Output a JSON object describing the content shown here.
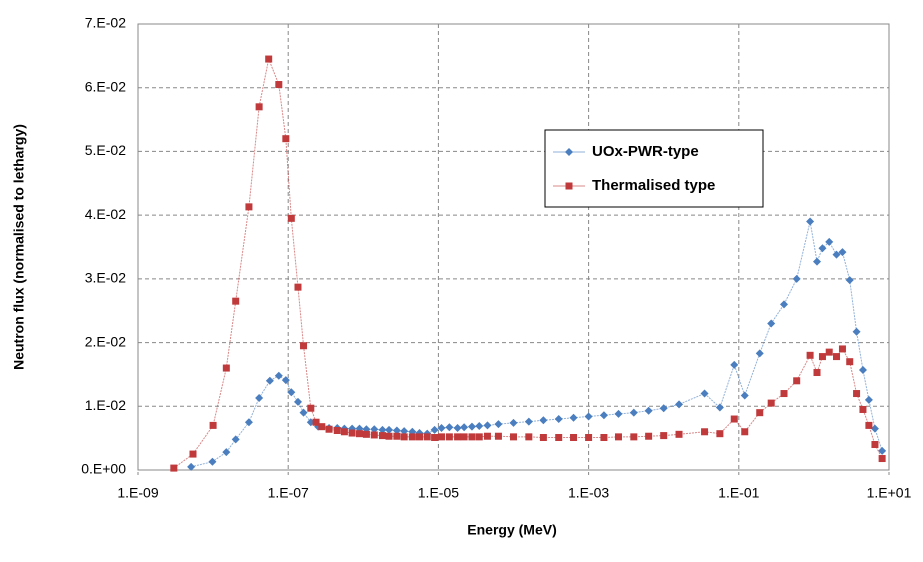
{
  "chart_data": {
    "type": "scatter-line",
    "x_label": "Energy (MeV)",
    "y_label": "Neutron flux (normalised to lethargy)",
    "xscale": "log",
    "xlim": [
      1e-09,
      10
    ],
    "xticks": [
      {
        "value": 1e-09,
        "label": "1.E-09"
      },
      {
        "value": 1e-07,
        "label": "1.E-07"
      },
      {
        "value": 1e-05,
        "label": "1.E-05"
      },
      {
        "value": 0.001,
        "label": "1.E-03"
      },
      {
        "value": 0.1,
        "label": "1.E-01"
      },
      {
        "value": 10,
        "label": "1.E+01"
      }
    ],
    "ylim": [
      0,
      0.07
    ],
    "yticks": [
      {
        "value": 0,
        "label": "0.E+00"
      },
      {
        "value": 0.01,
        "label": "1.E-02"
      },
      {
        "value": 0.02,
        "label": "2.E-02"
      },
      {
        "value": 0.03,
        "label": "3.E-02"
      },
      {
        "value": 0.04,
        "label": "4.E-02"
      },
      {
        "value": 0.05,
        "label": "5.E-02"
      },
      {
        "value": 0.06,
        "label": "6.E-02"
      },
      {
        "value": 0.07,
        "label": "7.E-02"
      }
    ],
    "grid": true,
    "legend_position": "right",
    "series": [
      {
        "name": "UOx-PWR-type",
        "color": "#4a7ebf",
        "marker": "diamond",
        "x": [
          5.1e-09,
          9.8e-09,
          1.5e-08,
          2e-08,
          3e-08,
          4.1e-08,
          5.7e-08,
          7.5e-08,
          9.3e-08,
          1.1e-07,
          1.35e-07,
          1.6e-07,
          2e-07,
          2.5e-07,
          3.5e-07,
          4.5e-07,
          5.6e-07,
          7.1e-07,
          8.9e-07,
          1.1e-06,
          1.4e-06,
          1.8e-06,
          2.2e-06,
          2.8e-06,
          3.5e-06,
          4.5e-06,
          5.6e-06,
          7.1e-06,
          8.9e-06,
          1.1e-05,
          1.4e-05,
          1.8e-05,
          2.2e-05,
          2.8e-05,
          3.5e-05,
          4.5e-05,
          6.3e-05,
          0.0001,
          0.00016,
          0.00025,
          0.0004,
          0.00063,
          0.001,
          0.0016,
          0.0025,
          0.004,
          0.0063,
          0.01,
          0.016,
          0.035,
          0.056,
          0.087,
          0.12,
          0.19,
          0.27,
          0.4,
          0.59,
          0.89,
          1.1,
          1.3,
          1.6,
          2.0,
          2.4,
          3.0,
          3.7,
          4.5,
          5.4,
          6.5,
          8.1
        ],
        "values": [
          0.0005,
          0.0013,
          0.0028,
          0.0048,
          0.0075,
          0.0113,
          0.014,
          0.0148,
          0.0141,
          0.0122,
          0.0107,
          0.009,
          0.0075,
          0.0068,
          0.0066,
          0.0066,
          0.0065,
          0.0065,
          0.0065,
          0.0064,
          0.0064,
          0.0063,
          0.0063,
          0.0062,
          0.0061,
          0.006,
          0.0058,
          0.0057,
          0.0063,
          0.0066,
          0.0067,
          0.0066,
          0.0067,
          0.0068,
          0.0069,
          0.007,
          0.0072,
          0.0074,
          0.0076,
          0.0078,
          0.008,
          0.0082,
          0.0084,
          0.0086,
          0.0088,
          0.009,
          0.0093,
          0.0097,
          0.0103,
          0.012,
          0.0098,
          0.0165,
          0.0117,
          0.0183,
          0.023,
          0.026,
          0.03,
          0.039,
          0.0327,
          0.0348,
          0.0358,
          0.0338,
          0.0342,
          0.0298,
          0.0217,
          0.0157,
          0.011,
          0.0065,
          0.003
        ]
      },
      {
        "name": "Thermalised type",
        "color": "#c0393b",
        "marker": "square",
        "x": [
          3e-09,
          5.4e-09,
          1e-08,
          1.5e-08,
          2e-08,
          3e-08,
          4.1e-08,
          5.5e-08,
          7.5e-08,
          9.3e-08,
          1.1e-07,
          1.35e-07,
          1.6e-07,
          2e-07,
          2.35e-07,
          2.8e-07,
          3.5e-07,
          4.5e-07,
          5.6e-07,
          7.1e-07,
          8.9e-07,
          1.1e-06,
          1.4e-06,
          1.8e-06,
          2.2e-06,
          2.8e-06,
          3.5e-06,
          4.5e-06,
          5.6e-06,
          7.1e-06,
          8.9e-06,
          1.1e-05,
          1.4e-05,
          1.8e-05,
          2.2e-05,
          2.8e-05,
          3.5e-05,
          4.5e-05,
          6.3e-05,
          0.0001,
          0.00016,
          0.00025,
          0.0004,
          0.00063,
          0.001,
          0.0016,
          0.0025,
          0.004,
          0.0063,
          0.01,
          0.016,
          0.035,
          0.056,
          0.087,
          0.12,
          0.19,
          0.27,
          0.4,
          0.59,
          0.89,
          1.1,
          1.3,
          1.6,
          2.0,
          2.4,
          3.0,
          3.7,
          4.5,
          5.4,
          6.5,
          8.1
        ],
        "values": [
          0.0003,
          0.0025,
          0.007,
          0.016,
          0.0265,
          0.0413,
          0.057,
          0.0645,
          0.0605,
          0.052,
          0.0395,
          0.0287,
          0.0195,
          0.0097,
          0.0075,
          0.0068,
          0.0064,
          0.0062,
          0.006,
          0.0058,
          0.0057,
          0.0056,
          0.0055,
          0.0054,
          0.0053,
          0.0053,
          0.0052,
          0.0052,
          0.0052,
          0.0052,
          0.0051,
          0.0052,
          0.0052,
          0.0052,
          0.0052,
          0.0052,
          0.0052,
          0.0053,
          0.0053,
          0.0052,
          0.0052,
          0.0051,
          0.0051,
          0.0051,
          0.0051,
          0.0051,
          0.0052,
          0.0052,
          0.0053,
          0.0054,
          0.0056,
          0.006,
          0.0057,
          0.008,
          0.006,
          0.009,
          0.0105,
          0.012,
          0.014,
          0.018,
          0.0153,
          0.0178,
          0.0185,
          0.0178,
          0.019,
          0.017,
          0.012,
          0.0095,
          0.007,
          0.004,
          0.0018
        ]
      }
    ]
  }
}
